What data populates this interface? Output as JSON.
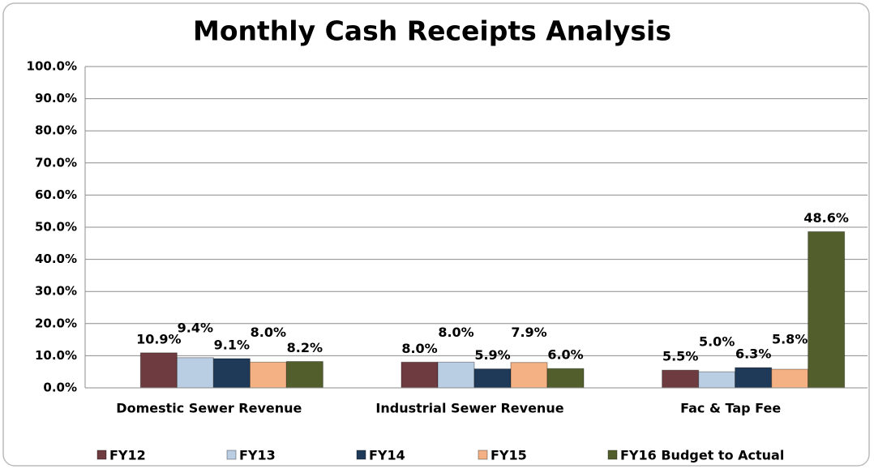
{
  "chart_data": {
    "type": "bar",
    "title": "Monthly Cash Receipts Analysis",
    "categories": [
      "Domestic Sewer Revenue",
      "Industrial Sewer Revenue",
      "Fac & Tap Fee"
    ],
    "series": [
      {
        "name": "FY12",
        "color": "#6e3b40",
        "values": [
          10.9,
          8.0,
          5.5
        ],
        "value_labels": [
          "10.9%",
          "8.0%",
          "5.5%"
        ]
      },
      {
        "name": "FY13",
        "color": "#b9cde3",
        "values": [
          9.4,
          8.0,
          5.0
        ],
        "value_labels": [
          "9.4%",
          "8.0%",
          "5.0%"
        ]
      },
      {
        "name": "FY14",
        "color": "#1f3a58",
        "values": [
          9.1,
          5.9,
          6.3
        ],
        "value_labels": [
          "9.1%",
          "5.9%",
          "6.3%"
        ]
      },
      {
        "name": "FY15",
        "color": "#f3b184",
        "values": [
          8.0,
          7.9,
          5.8
        ],
        "value_labels": [
          "8.0%",
          "7.9%",
          "5.8%"
        ]
      },
      {
        "name": "FY16 Budget to Actual",
        "color": "#525f2c",
        "values": [
          8.2,
          6.0,
          48.6
        ],
        "value_labels": [
          "8.2%",
          "6.0%",
          "48.6%"
        ]
      }
    ],
    "ylim": [
      0,
      100
    ],
    "yticks": [
      {
        "value": 0,
        "label": "0.0%"
      },
      {
        "value": 10,
        "label": "10.0%"
      },
      {
        "value": 20,
        "label": "20.0%"
      },
      {
        "value": 30,
        "label": "30.0%"
      },
      {
        "value": 40,
        "label": "40.0%"
      },
      {
        "value": 50,
        "label": "50.0%"
      },
      {
        "value": 60,
        "label": "60.0%"
      },
      {
        "value": 70,
        "label": "70.0%"
      },
      {
        "value": 80,
        "label": "80.0%"
      },
      {
        "value": 90,
        "label": "90.0%"
      },
      {
        "value": 100,
        "label": "100.0%"
      }
    ],
    "grid": true,
    "legend": "bottom"
  }
}
